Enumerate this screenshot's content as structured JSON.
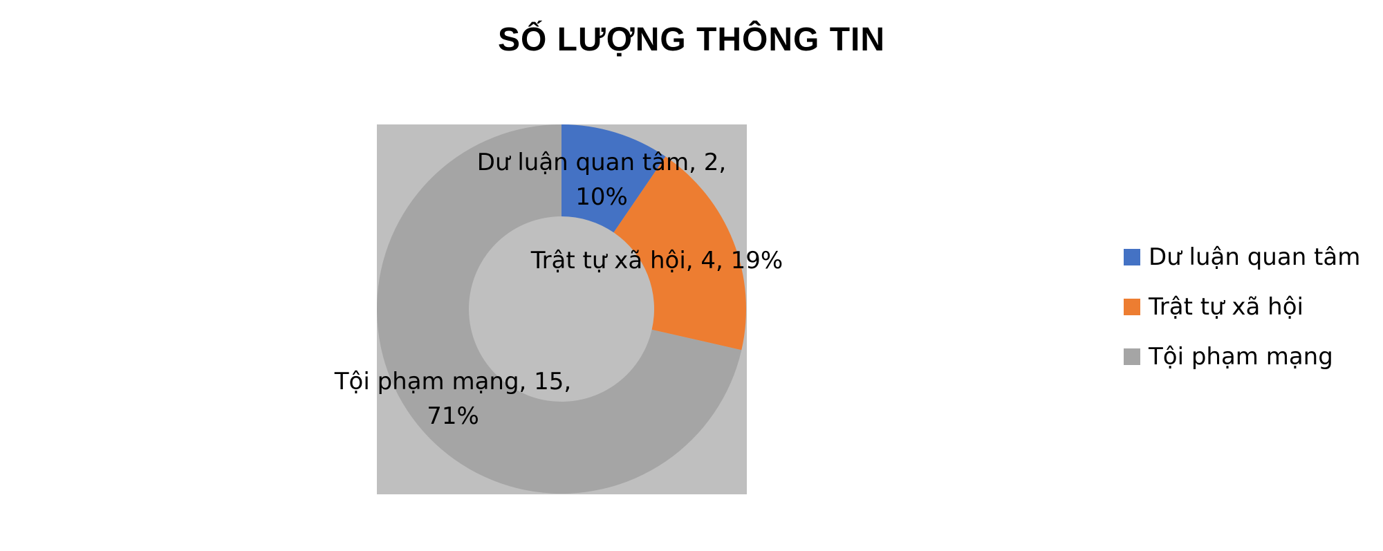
{
  "chart_data": {
    "type": "pie",
    "variant": "doughnut",
    "title": "SỐ LƯỢNG THÔNG TIN",
    "categories": [
      "Dư luận quan tâm",
      "Trật tự xã hội",
      "Tội phạm mạng"
    ],
    "values": [
      2,
      4,
      15
    ],
    "percent_labels": [
      "10%",
      "19%",
      "71%"
    ],
    "colors": [
      "#4472C4",
      "#ED7D31",
      "#A5A5A5"
    ],
    "data_labels": [
      [
        "Dư luận quan tâm, 2,",
        "10%"
      ],
      [
        "Trật tự xã hội, 4, 19%"
      ],
      [
        "Tội phạm mạng, 15,",
        "71%"
      ]
    ],
    "legend_position": "right",
    "plot_area_color": "#BFBFBF"
  }
}
